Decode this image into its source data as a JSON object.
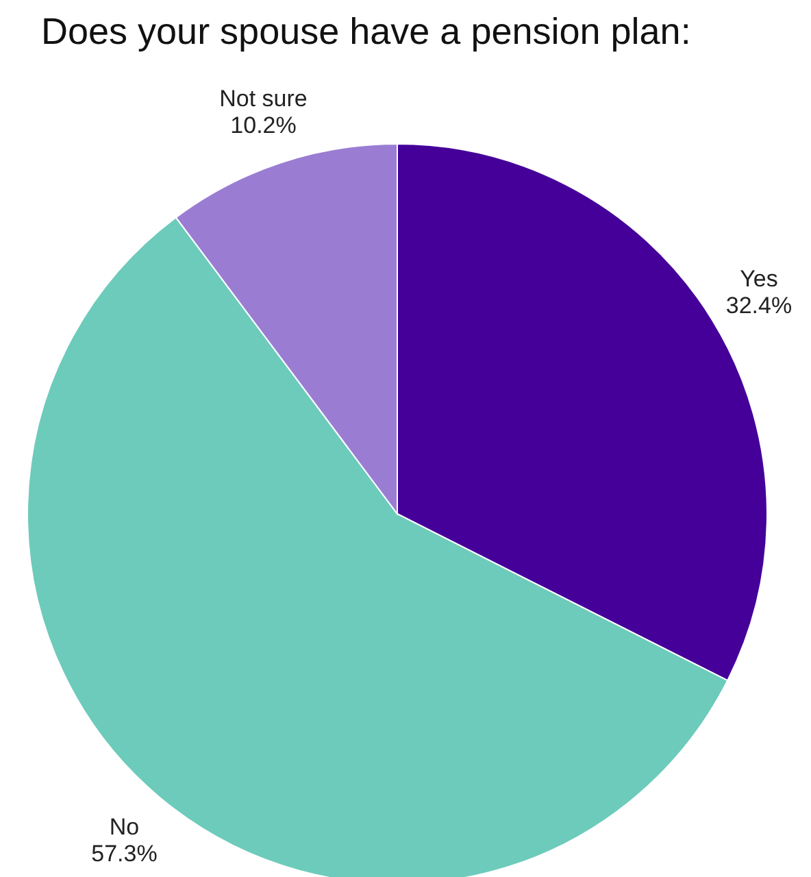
{
  "chart_data": {
    "type": "pie",
    "title": "Does your spouse have a pension plan:",
    "categories": [
      "Yes",
      "No",
      "Not sure"
    ],
    "values": [
      32.4,
      57.3,
      10.2
    ],
    "value_labels": [
      "32.4%",
      "57.3%",
      "10.2%"
    ],
    "colors": [
      "#450099",
      "#6dcbbb",
      "#9a7dd3"
    ]
  }
}
